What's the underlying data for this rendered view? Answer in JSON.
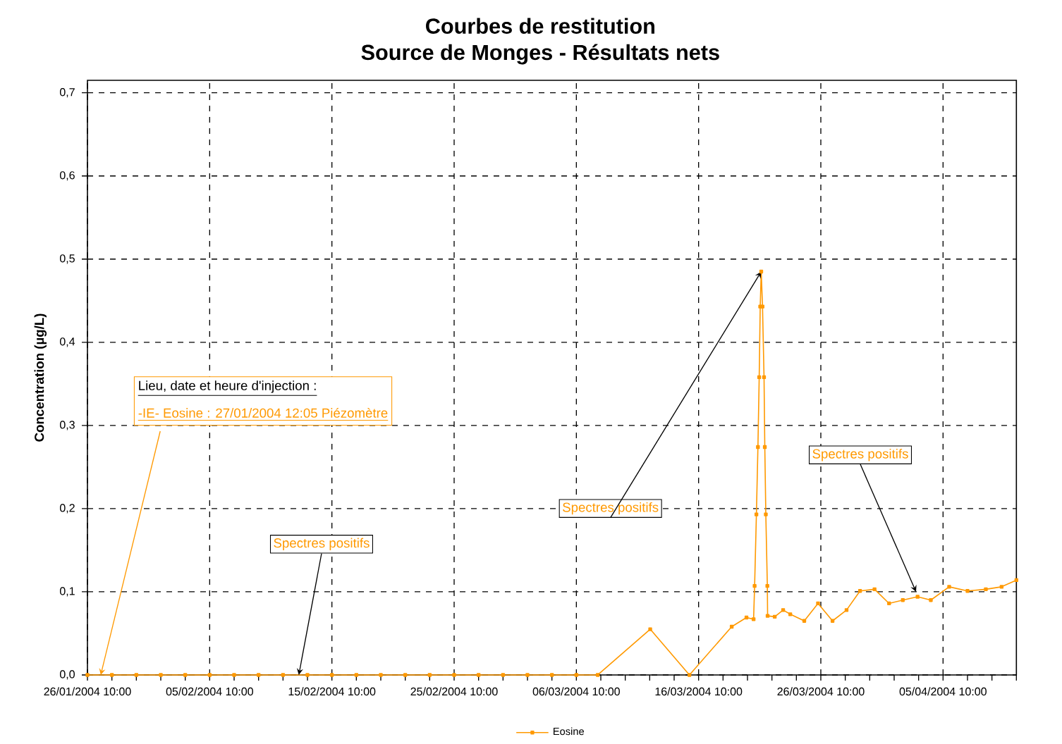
{
  "chart_data": {
    "type": "line",
    "title": "Courbes de restitution",
    "subtitle": "Source de Monges - Résultats nets",
    "ylabel": "Concentration (µg/L)",
    "x": [
      "2004-01-26T10:00",
      "2004-01-28T10:00",
      "2004-01-30T10:00",
      "2004-02-01T10:00",
      "2004-02-03T10:00",
      "2004-02-05T10:00",
      "2004-02-07T10:00",
      "2004-02-09T10:00",
      "2004-02-11T10:00",
      "2004-02-13T10:00",
      "2004-02-15T10:00",
      "2004-02-17T10:00",
      "2004-02-19T10:00",
      "2004-02-21T10:00",
      "2004-02-23T10:00",
      "2004-02-25T10:00",
      "2004-02-27T10:00",
      "2004-02-29T10:00",
      "2004-03-02T10:00",
      "2004-03-04T10:00",
      "2004-03-06T10:00",
      "2004-03-08T04:00",
      "2004-03-12T11:00",
      "2004-03-15T16:00",
      "2004-03-19T03:00",
      "2004-03-20T08:00",
      "2004-03-20T22:00",
      "2004-03-21T00:00",
      "2004-03-21T03:30",
      "2004-03-21T06:30",
      "2004-03-21T09:00",
      "2004-03-21T11:00",
      "2004-03-21T13:00",
      "2004-03-21T15:30",
      "2004-03-21T18:30",
      "2004-03-21T20:00",
      "2004-03-21T22:00",
      "2004-03-22T01:00",
      "2004-03-22T01:30",
      "2004-03-22T15:30",
      "2004-03-23T08:00",
      "2004-03-23T22:00",
      "2004-03-25T01:30",
      "2004-03-26T04:30",
      "2004-03-27T09:00",
      "2004-03-28T12:30",
      "2004-03-29T15:00",
      "2004-03-30T19:30",
      "2004-04-01T00:00",
      "2004-04-02T03:00",
      "2004-04-03T08:00",
      "2004-04-04T10:00",
      "2004-04-05T22:00",
      "2004-04-07T10:00",
      "2004-04-08T22:00",
      "2004-04-10T05:00",
      "2004-04-11T10:00"
    ],
    "series": [
      {
        "name": "Eosine",
        "color": "#ff9900",
        "values": [
          0,
          0,
          0,
          0,
          0,
          0,
          0,
          0,
          0,
          0,
          0,
          0,
          0,
          0,
          0,
          0,
          0,
          0,
          0,
          0,
          0,
          0,
          0.055,
          0,
          0.058,
          0.069,
          0.067,
          0.107,
          0.193,
          0.274,
          0.358,
          0.443,
          0.485,
          0.443,
          0.358,
          0.274,
          0.193,
          0.107,
          0.071,
          0.07,
          0.078,
          0.073,
          0.065,
          0.086,
          0.065,
          0.078,
          0.101,
          0.103,
          0.086,
          0.09,
          0.094,
          0.09,
          0.106,
          0.101,
          0.103,
          0.106,
          0.114
        ]
      }
    ],
    "xlim": [
      "2004-01-26T10:00",
      "2004-04-11T10:00"
    ],
    "xticks": [
      {
        "value": "2004-01-26T10:00",
        "label": "26/01/2004 10:00"
      },
      {
        "value": "2004-02-05T10:00",
        "label": "05/02/2004 10:00"
      },
      {
        "value": "2004-02-15T10:00",
        "label": "15/02/2004 10:00"
      },
      {
        "value": "2004-02-25T10:00",
        "label": "25/02/2004 10:00"
      },
      {
        "value": "2004-03-06T10:00",
        "label": "06/03/2004 10:00"
      },
      {
        "value": "2004-03-16T10:00",
        "label": "16/03/2004 10:00"
      },
      {
        "value": "2004-03-26T10:00",
        "label": "26/03/2004 10:00"
      },
      {
        "value": "2004-04-05T10:00",
        "label": "05/04/2004 10:00"
      },
      {
        "value": "2004-01-28T10:00",
        "label": null
      },
      {
        "value": "2004-01-30T10:00",
        "label": null
      },
      {
        "value": "2004-02-01T10:00",
        "label": null
      },
      {
        "value": "2004-02-03T10:00",
        "label": null
      },
      {
        "value": "2004-02-07T10:00",
        "label": null
      },
      {
        "value": "2004-02-09T10:00",
        "label": null
      },
      {
        "value": "2004-02-11T10:00",
        "label": null
      },
      {
        "value": "2004-02-13T10:00",
        "label": null
      },
      {
        "value": "2004-02-17T10:00",
        "label": null
      },
      {
        "value": "2004-02-19T10:00",
        "label": null
      },
      {
        "value": "2004-02-21T10:00",
        "label": null
      },
      {
        "value": "2004-02-23T10:00",
        "label": null
      },
      {
        "value": "2004-02-27T10:00",
        "label": null
      },
      {
        "value": "2004-02-29T10:00",
        "label": null
      },
      {
        "value": "2004-03-02T10:00",
        "label": null
      },
      {
        "value": "2004-03-04T10:00",
        "label": null
      },
      {
        "value": "2004-03-08T10:00",
        "label": null
      },
      {
        "value": "2004-03-10T10:00",
        "label": null
      },
      {
        "value": "2004-03-12T10:00",
        "label": null
      },
      {
        "value": "2004-03-14T10:00",
        "label": null
      },
      {
        "value": "2004-03-18T10:00",
        "label": null
      },
      {
        "value": "2004-03-20T10:00",
        "label": null
      },
      {
        "value": "2004-03-22T10:00",
        "label": null
      },
      {
        "value": "2004-03-24T10:00",
        "label": null
      },
      {
        "value": "2004-03-28T10:00",
        "label": null
      },
      {
        "value": "2004-03-30T10:00",
        "label": null
      },
      {
        "value": "2004-04-01T10:00",
        "label": null
      },
      {
        "value": "2004-04-03T10:00",
        "label": null
      },
      {
        "value": "2004-04-07T10:00",
        "label": null
      },
      {
        "value": "2004-04-09T10:00",
        "label": null
      },
      {
        "value": "2004-04-11T10:00",
        "label": null
      }
    ],
    "ylim": [
      0,
      0.715
    ],
    "yticks": [
      {
        "value": 0,
        "label": "0,0"
      },
      {
        "value": 0.1,
        "label": "0,1"
      },
      {
        "value": 0.2,
        "label": "0,2"
      },
      {
        "value": 0.3,
        "label": "0,3"
      },
      {
        "value": 0.4,
        "label": "0,4"
      },
      {
        "value": 0.5,
        "label": "0,5"
      },
      {
        "value": 0.6,
        "label": "0,6"
      },
      {
        "value": 0.7,
        "label": "0,7"
      }
    ],
    "grid": true,
    "legend": "bottom",
    "marker": "square",
    "line_style": "solid",
    "annotations": [
      "Lieu, date et heure d'injection :",
      {
        "text": "-IE- Eosine : 27/01/2004 12:05 Piézomètre",
        "x": "2004-01-27T12:05",
        "y": 0
      },
      {
        "text": "Spectres positifs",
        "x": "2004-02-12T17:00",
        "y": 0
      },
      {
        "text": "Spectres positifs",
        "x": "2004-03-21T13:00",
        "y": 0.485
      },
      {
        "text": "Spectres positifs",
        "x": "2004-04-03T05:00",
        "y": 0.1
      }
    ]
  }
}
